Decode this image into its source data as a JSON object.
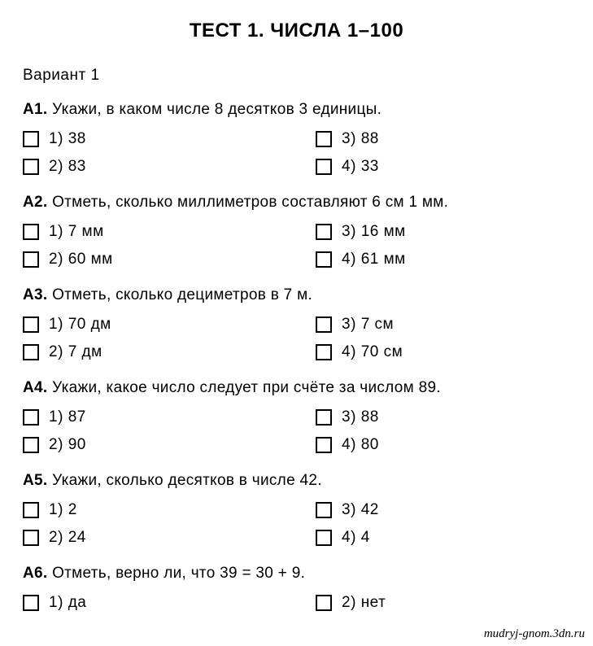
{
  "title": "ТЕСТ 1. ЧИСЛА 1–100",
  "variant": "Вариант  1",
  "watermark": "mudryj-gnom.3dn.ru",
  "questions": [
    {
      "id": "А1.",
      "prompt": "Укажи, в каком числе 8 десятков 3 единицы.",
      "left": [
        {
          "n": "1)",
          "t": "38"
        },
        {
          "n": "2)",
          "t": "83"
        }
      ],
      "right": [
        {
          "n": "3)",
          "t": "88"
        },
        {
          "n": "4)",
          "t": "33"
        }
      ]
    },
    {
      "id": "А2.",
      "prompt": "Отметь, сколько миллиметров составляют 6 см 1 мм.",
      "left": [
        {
          "n": "1)",
          "t": "7 мм"
        },
        {
          "n": "2)",
          "t": "60 мм"
        }
      ],
      "right": [
        {
          "n": "3)",
          "t": "16 мм"
        },
        {
          "n": "4)",
          "t": "61 мм"
        }
      ]
    },
    {
      "id": "А3.",
      "prompt": "Отметь, сколько дециметров в 7 м.",
      "left": [
        {
          "n": "1)",
          "t": "70 дм"
        },
        {
          "n": "2)",
          "t": "7 дм"
        }
      ],
      "right": [
        {
          "n": "3)",
          "t": "7 см"
        },
        {
          "n": "4)",
          "t": "70 см"
        }
      ]
    },
    {
      "id": "А4.",
      "prompt": "Укажи, какое число следует при счёте за числом 89.",
      "left": [
        {
          "n": "1)",
          "t": "87"
        },
        {
          "n": "2)",
          "t": "90"
        }
      ],
      "right": [
        {
          "n": "3)",
          "t": "88"
        },
        {
          "n": "4)",
          "t": "80"
        }
      ]
    },
    {
      "id": "А5.",
      "prompt": "Укажи, сколько десятков в числе 42.",
      "left": [
        {
          "n": "1)",
          "t": "2"
        },
        {
          "n": "2)",
          "t": "24"
        }
      ],
      "right": [
        {
          "n": "3)",
          "t": "42"
        },
        {
          "n": "4)",
          "t": "4"
        }
      ]
    },
    {
      "id": "А6.",
      "prompt": "Отметь, верно ли, что 39 = 30 + 9.",
      "left": [
        {
          "n": "1)",
          "t": "да"
        }
      ],
      "right": [
        {
          "n": "2)",
          "t": "нет"
        }
      ]
    }
  ]
}
